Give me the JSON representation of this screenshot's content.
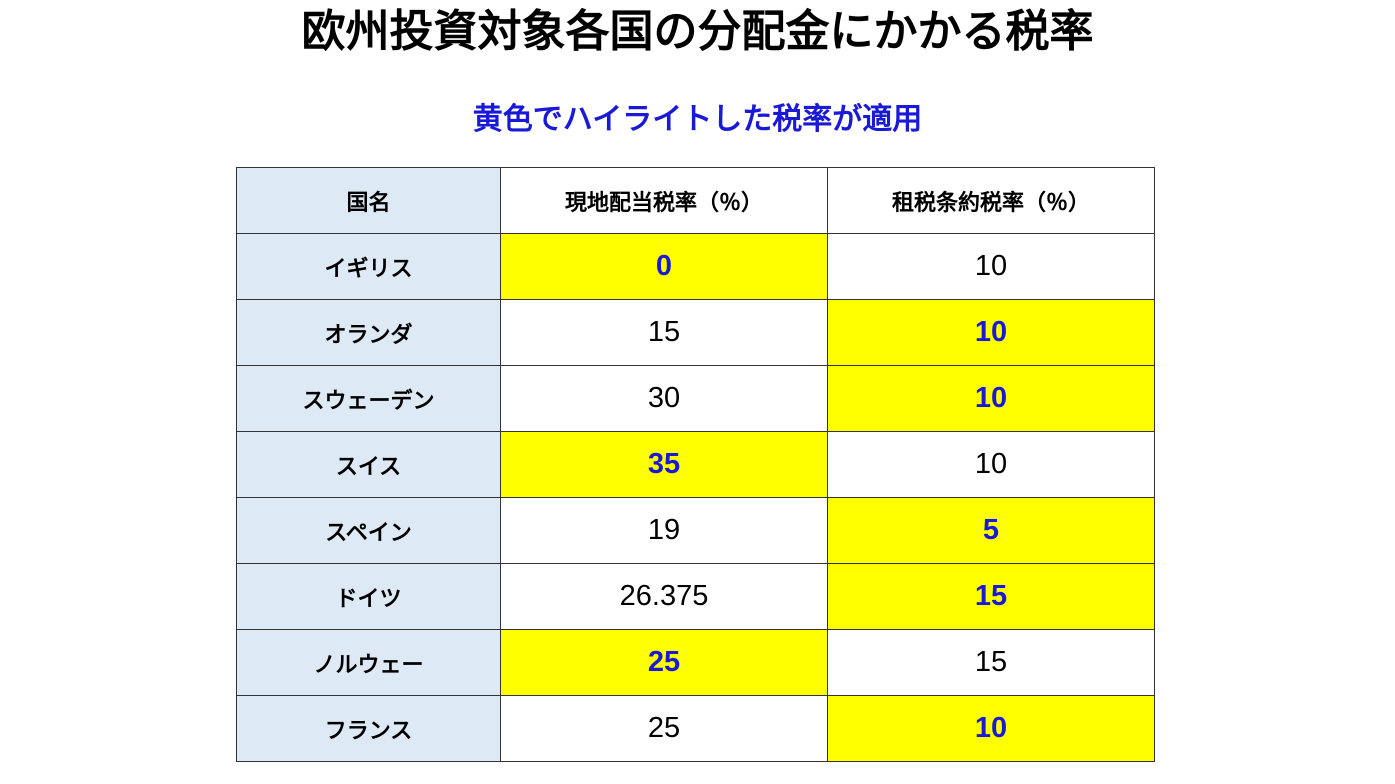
{
  "title": "欧州投資対象各国の分配金にかかる税率",
  "subtitle": "黄色でハイライトした税率が適用",
  "colors": {
    "subtitle": "#1a1ad6",
    "highlight_bg": "#ffff00",
    "highlight_text": "#1a1ad6",
    "country_bg": "#dde9f5"
  },
  "table": {
    "headers": [
      "国名",
      "現地配当税率（％）",
      "租税条約税率（％）"
    ],
    "rows": [
      {
        "country": "イギリス",
        "local": "0",
        "treaty": "10",
        "applied": "local"
      },
      {
        "country": "オランダ",
        "local": "15",
        "treaty": "10",
        "applied": "treaty"
      },
      {
        "country": "スウェーデン",
        "local": "30",
        "treaty": "10",
        "applied": "treaty"
      },
      {
        "country": "スイス",
        "local": "35",
        "treaty": "10",
        "applied": "local"
      },
      {
        "country": "スペイン",
        "local": "19",
        "treaty": "5",
        "applied": "treaty"
      },
      {
        "country": "ドイツ",
        "local": "26.375",
        "treaty": "15",
        "applied": "treaty"
      },
      {
        "country": "ノルウェー",
        "local": "25",
        "treaty": "15",
        "applied": "local"
      },
      {
        "country": "フランス",
        "local": "25",
        "treaty": "10",
        "applied": "treaty"
      }
    ]
  }
}
